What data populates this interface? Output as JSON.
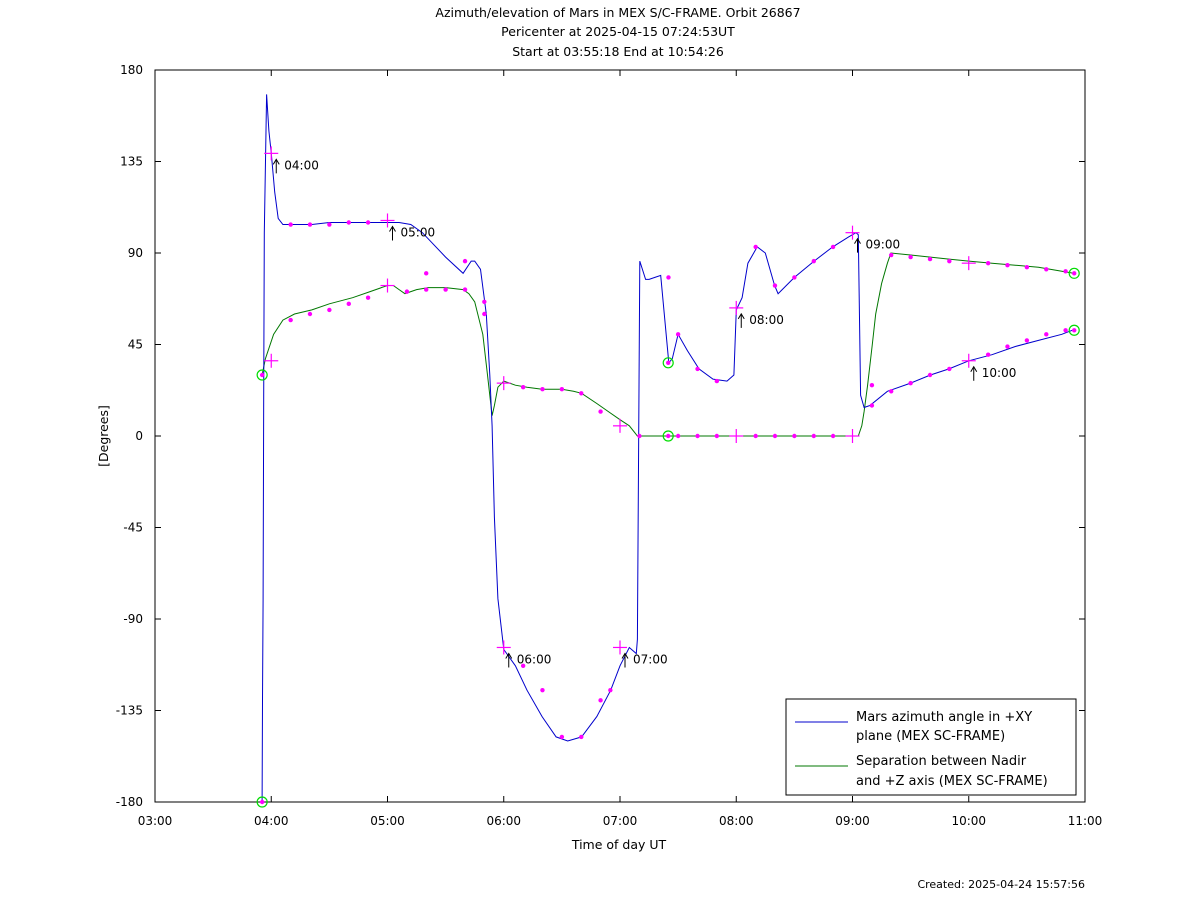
{
  "chart_data": {
    "type": "line",
    "title_lines": [
      "Azimuth/elevation of Mars in MEX S/C-FRAME.  Orbit 26867",
      "Pericenter at 2025-04-15 07:24:53UT",
      "Start at 03:55:18 End at 10:54:26"
    ],
    "xlabel": "Time of day UT",
    "ylabel": "[Degrees]",
    "xlim_hours": [
      3.0,
      11.0
    ],
    "ylim": [
      -180,
      180
    ],
    "x_tick_labels": [
      "03:00",
      "04:00",
      "05:00",
      "06:00",
      "07:00",
      "08:00",
      "09:00",
      "10:00",
      "11:00"
    ],
    "y_tick_labels": [
      "180",
      "135",
      "90",
      "45",
      "0",
      "-45",
      "-90",
      "-135",
      "-180"
    ],
    "y_tick_values": [
      180,
      135,
      90,
      45,
      0,
      -45,
      -90,
      -135,
      -180
    ],
    "legend_position": "bottom-right",
    "colors": {
      "azimuth": "#0000cc",
      "separation": "#007700",
      "marker": "#ff00ff",
      "endpoint": "#00dd00"
    },
    "series": [
      {
        "name": "Mars azimuth angle in +XY plane (MEX SC-FRAME)",
        "x_hours": [
          3.9217,
          3.925,
          3.93,
          3.935,
          3.94,
          3.96,
          3.98,
          4.0,
          4.03,
          4.06,
          4.1,
          4.15,
          4.2,
          4.35,
          4.5,
          4.7,
          4.85,
          5.0,
          5.1,
          5.2,
          5.3,
          5.5,
          5.65,
          5.72,
          5.75,
          5.8,
          5.85,
          5.88,
          5.9,
          5.92,
          5.95,
          6.0,
          6.1,
          6.2,
          6.33,
          6.45,
          6.55,
          6.67,
          6.8,
          6.92,
          7.0,
          7.08,
          7.14,
          7.15,
          7.17,
          7.22,
          7.25,
          7.3,
          7.35,
          7.42,
          7.45,
          7.5,
          7.58,
          7.68,
          7.8,
          7.92,
          7.98,
          8.0,
          8.05,
          8.1,
          8.18,
          8.25,
          8.33,
          8.36,
          8.5,
          8.67,
          8.83,
          8.97,
          9.03,
          9.05,
          9.07,
          9.1,
          9.15,
          9.3,
          9.5,
          9.67,
          9.83,
          10.0,
          10.2,
          10.4,
          10.6,
          10.8,
          10.89
        ],
        "values": [
          -180,
          -130,
          -80,
          20,
          100,
          168,
          150,
          139,
          120,
          107,
          104,
          104,
          104,
          104,
          105,
          105,
          105,
          105,
          105,
          104,
          100,
          88,
          80,
          86,
          86,
          82,
          60,
          30,
          5,
          -40,
          -80,
          -105,
          -113,
          -125,
          -138,
          -148,
          -150,
          -148,
          -138,
          -125,
          -113,
          -104,
          -107,
          -100,
          86,
          77,
          77,
          78,
          79,
          36,
          38,
          50,
          42,
          33,
          28,
          27,
          30,
          62,
          68,
          85,
          93,
          90,
          74,
          70,
          78,
          86,
          93,
          98,
          100,
          99,
          20,
          14,
          15,
          22,
          26,
          30,
          33,
          37,
          40,
          44,
          47,
          50,
          52
        ]
      },
      {
        "name": "Separation between Nadir and +Z axis (MEX SC-FRAME)",
        "x_hours": [
          3.9217,
          3.95,
          4.02,
          4.1,
          4.2,
          4.35,
          4.5,
          4.7,
          4.85,
          5.0,
          5.05,
          5.1,
          5.15,
          5.2,
          5.25,
          5.35,
          5.5,
          5.65,
          5.7,
          5.75,
          5.82,
          5.86,
          5.88,
          5.9,
          5.92,
          5.95,
          6.0,
          6.1,
          6.2,
          6.33,
          6.5,
          6.6,
          6.67,
          6.8,
          6.9,
          7.0,
          7.08,
          7.15,
          7.25,
          7.42,
          7.5,
          7.67,
          7.83,
          8.0,
          8.2,
          8.5,
          8.75,
          9.0,
          9.05,
          9.08,
          9.1,
          9.13,
          9.17,
          9.2,
          9.25,
          9.3,
          9.33,
          9.5,
          9.67,
          9.83,
          10.0,
          10.2,
          10.4,
          10.6,
          10.8,
          10.9
        ],
        "values": [
          30,
          38,
          50,
          57,
          60,
          62,
          65,
          68,
          71,
          74,
          74,
          72,
          70,
          71,
          72,
          73,
          73,
          72,
          70,
          66,
          50,
          30,
          20,
          10,
          15,
          24,
          27,
          25,
          24,
          23,
          23,
          22,
          21,
          16,
          12,
          8,
          5,
          0,
          0,
          0,
          0,
          0,
          0,
          0,
          0,
          0,
          0,
          0,
          0,
          5,
          12,
          25,
          45,
          60,
          75,
          85,
          90,
          89,
          88,
          87,
          86,
          85,
          84,
          83,
          81,
          80
        ]
      }
    ],
    "hour_labels": [
      "04:00",
      "05:00",
      "06:00",
      "07:00",
      "08:00",
      "09:00",
      "10:00"
    ],
    "hour_marks": {
      "azimuth_y": [
        139,
        106,
        -104,
        -104,
        63,
        100,
        37
      ],
      "separation_y": [
        37,
        74,
        26,
        5,
        0,
        0,
        85
      ]
    },
    "endpoints": {
      "start_hours": 3.9217,
      "end_hours": 10.9072,
      "pericenter_hours": 7.4147,
      "azimuth_start": -180,
      "azimuth_end": 52,
      "azimuth_peri": 36,
      "separation_start": 30,
      "separation_end": 80,
      "separation_peri": 0
    },
    "minor_markers": {
      "azimuth": [
        [
          4.167,
          104
        ],
        [
          4.333,
          104
        ],
        [
          4.5,
          104
        ],
        [
          4.667,
          105
        ],
        [
          4.833,
          105
        ],
        [
          5.333,
          80
        ],
        [
          5.667,
          86
        ],
        [
          5.833,
          60
        ],
        [
          6.167,
          -113
        ],
        [
          6.333,
          -125
        ],
        [
          6.5,
          -148
        ],
        [
          6.667,
          -148
        ],
        [
          6.833,
          -130
        ],
        [
          6.917,
          -125
        ],
        [
          7.417,
          78
        ],
        [
          7.5,
          50
        ],
        [
          7.667,
          33
        ],
        [
          7.833,
          27
        ],
        [
          8.167,
          93
        ],
        [
          8.333,
          74
        ],
        [
          8.5,
          78
        ],
        [
          8.667,
          86
        ],
        [
          8.833,
          93
        ],
        [
          9.167,
          15
        ],
        [
          9.333,
          22
        ],
        [
          9.5,
          26
        ],
        [
          9.667,
          30
        ],
        [
          9.833,
          33
        ],
        [
          10.167,
          40
        ],
        [
          10.333,
          44
        ],
        [
          10.5,
          47
        ],
        [
          10.667,
          50
        ],
        [
          10.833,
          52
        ]
      ],
      "separation": [
        [
          4.167,
          57
        ],
        [
          4.333,
          60
        ],
        [
          4.5,
          62
        ],
        [
          4.667,
          65
        ],
        [
          4.833,
          68
        ],
        [
          5.167,
          71
        ],
        [
          5.333,
          72
        ],
        [
          5.5,
          72
        ],
        [
          5.667,
          72
        ],
        [
          5.833,
          66
        ],
        [
          6.167,
          24
        ],
        [
          6.333,
          23
        ],
        [
          6.5,
          23
        ],
        [
          6.667,
          21
        ],
        [
          6.833,
          12
        ],
        [
          7.167,
          0
        ],
        [
          7.5,
          0
        ],
        [
          7.667,
          0
        ],
        [
          7.833,
          0
        ],
        [
          8.167,
          0
        ],
        [
          8.333,
          0
        ],
        [
          8.5,
          0
        ],
        [
          8.667,
          0
        ],
        [
          8.833,
          0
        ],
        [
          9.167,
          25
        ],
        [
          9.333,
          89
        ],
        [
          9.5,
          88
        ],
        [
          9.667,
          87
        ],
        [
          9.833,
          86
        ],
        [
          10.167,
          85
        ],
        [
          10.333,
          84
        ],
        [
          10.5,
          83
        ],
        [
          10.667,
          82
        ],
        [
          10.833,
          81
        ]
      ]
    }
  },
  "legend": {
    "entry1_line1": "Mars azimuth angle in +XY",
    "entry1_line2": "plane (MEX SC-FRAME)",
    "entry2_line1": "Separation between Nadir",
    "entry2_line2": "and +Z axis (MEX SC-FRAME)"
  },
  "footer": {
    "created": "Created: 2025-04-24 15:57:56"
  }
}
